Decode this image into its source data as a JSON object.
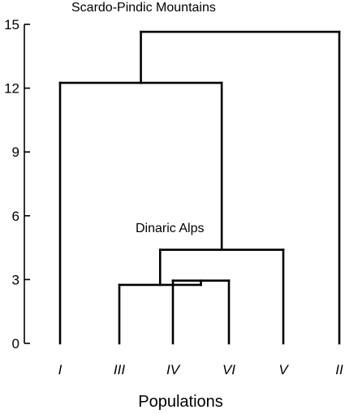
{
  "chart_data": {
    "type": "dendrogram",
    "title": "",
    "xlabel": "Populations",
    "ylabel": "",
    "ylim": [
      0,
      15
    ],
    "yticks": [
      0,
      3,
      6,
      9,
      12,
      15
    ],
    "grid": false,
    "leaves": [
      "I",
      "III",
      "IV",
      "VI",
      "V",
      "II"
    ],
    "merges": [
      {
        "left": "IV",
        "right": "VI",
        "height": 2.95
      },
      {
        "left": "III",
        "right": "IV+VI",
        "height": 2.75
      },
      {
        "left": "III+IV+VI",
        "right": "V",
        "height": 4.4
      },
      {
        "left": "I",
        "right": "III+IV+VI+V",
        "height": 12.25
      },
      {
        "left": "I+III+IV+VI+V",
        "right": "II",
        "height": 14.65
      }
    ],
    "annotations": [
      {
        "text": "Scardo-Pindic Mountains",
        "near_height": 15.6
      },
      {
        "text": "Dinaric Alps",
        "near_height": 5.3
      }
    ]
  }
}
